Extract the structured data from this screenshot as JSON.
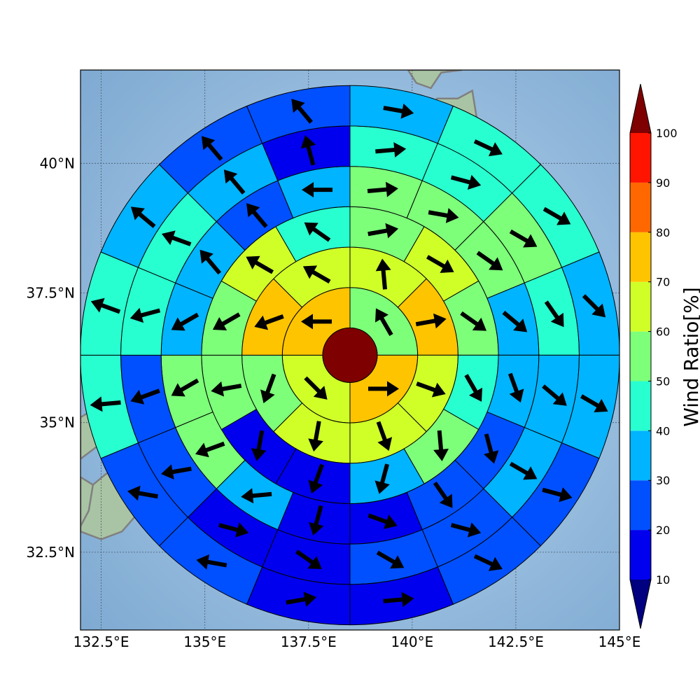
{
  "map": {
    "lon_range": [
      132.0,
      145.0
    ],
    "lat_range": [
      31.0,
      41.8
    ],
    "center": {
      "lon": 138.5,
      "lat": 36.3
    },
    "x_ticks": [
      {
        "value": 132.5,
        "label": "132.5°E"
      },
      {
        "value": 135.0,
        "label": "135°E"
      },
      {
        "value": 137.5,
        "label": "137.5°E"
      },
      {
        "value": 140.0,
        "label": "140°E"
      },
      {
        "value": 142.5,
        "label": "142.5°E"
      },
      {
        "value": 145.0,
        "label": "145°E"
      }
    ],
    "y_ticks": [
      {
        "value": 32.5,
        "label": "32.5°N"
      },
      {
        "value": 35.0,
        "label": "35°N"
      },
      {
        "value": 37.5,
        "label": "37.5°N"
      },
      {
        "value": 40.0,
        "label": "40°N"
      }
    ],
    "grid": true,
    "colors": {
      "sea": "#8db5d8",
      "land": "#a9c4a4",
      "coast": "#808080"
    }
  },
  "colorbar": {
    "label": "Wind Ratio[%]",
    "ticks": [
      "10",
      "20",
      "30",
      "40",
      "50",
      "60",
      "70",
      "80",
      "90",
      "100"
    ],
    "bins": [
      "#000080",
      "#0000ee",
      "#0050ff",
      "#00b4ff",
      "#28ffd0",
      "#7dff7a",
      "#d0ff28",
      "#ffc400",
      "#ff6800",
      "#ff1400"
    ],
    "under_color": "#00007f",
    "over_color": "#7f0000",
    "extend": "both"
  },
  "chart_data": {
    "type": "polar-sector-map",
    "center_value": 100,
    "rings": [
      {
        "ring": 1,
        "sectors": 4,
        "ratio": [
          50,
          70,
          60,
          70
        ],
        "wind_dir_deg": [
          330,
          90,
          135,
          270
        ]
      },
      {
        "ring": 2,
        "sectors": 8,
        "ratio": [
          60,
          70,
          60,
          60,
          60,
          50,
          70,
          60
        ],
        "wind_dir_deg": [
          355,
          80,
          110,
          160,
          190,
          200,
          250,
          300
        ]
      },
      {
        "ring": 3,
        "sectors": 12,
        "ratio": [
          50,
          60,
          50,
          40,
          50,
          30,
          10,
          10,
          50,
          50,
          60,
          40
        ],
        "wind_dir_deg": [
          80,
          120,
          125,
          150,
          175,
          195,
          200,
          190,
          260,
          240,
          300,
          305
        ]
      },
      {
        "ring": 4,
        "sectors": 16,
        "ratio": [
          50,
          50,
          50,
          30,
          30,
          20,
          20,
          10,
          10,
          30,
          50,
          50,
          30,
          30,
          20,
          30
        ],
        "wind_dir_deg": [
          85,
          100,
          125,
          130,
          160,
          165,
          145,
          110,
          195,
          265,
          250,
          240,
          240,
          320,
          320,
          270
        ]
      },
      {
        "ring": 5,
        "sectors": 16,
        "ratio": [
          40,
          40,
          50,
          40,
          30,
          30,
          20,
          20,
          10,
          10,
          20,
          20,
          40,
          40,
          30,
          10
        ],
        "wind_dir_deg": [
          85,
          105,
          120,
          145,
          130,
          120,
          105,
          120,
          125,
          105,
          260,
          250,
          255,
          290,
          320,
          345
        ]
      },
      {
        "ring": 6,
        "sectors": 16,
        "ratio": [
          30,
          40,
          40,
          30,
          30,
          20,
          20,
          10,
          10,
          20,
          20,
          40,
          40,
          30,
          20,
          20
        ],
        "wind_dir_deg": [
          100,
          115,
          120,
          135,
          120,
          105,
          115,
          85,
          80,
          280,
          280,
          265,
          290,
          310,
          320,
          320
        ]
      }
    ]
  }
}
